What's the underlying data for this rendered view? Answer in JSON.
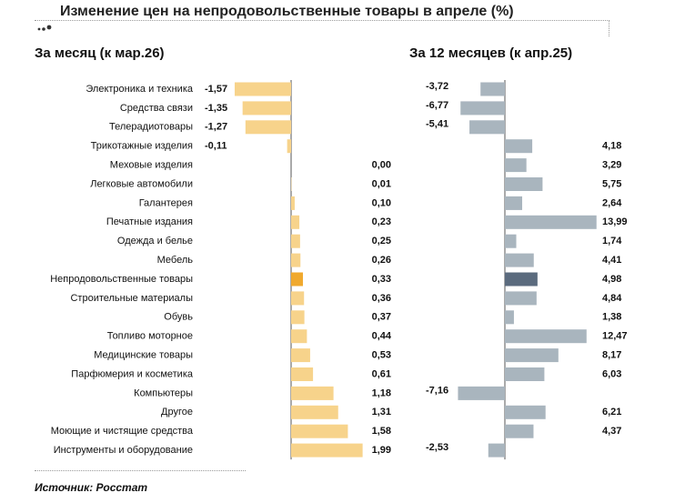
{
  "header": {
    "title": "Изменение цен на непродовольственные товары в апреле (%)",
    "left_subtitle": "За месяц (к мар.26)",
    "right_subtitle": "За 12 месяцев (к апр.25)",
    "source": "Источник: Росстат"
  },
  "colors": {
    "month_bar": "#f7d38b",
    "month_highlight": "#f0a92e",
    "year_bar": "#a9b5be",
    "year_highlight": "#5b6b7e",
    "axis": "#555555"
  },
  "chart_data": [
    {
      "type": "bar",
      "orientation": "horizontal",
      "title": "За месяц (к мар.26)",
      "highlight": "Непродовольственные товары",
      "categories": [
        "Электроника и техника",
        "Средства связи",
        "Телерадиотовары",
        "Трикотажные изделия",
        "Меховые изделия",
        "Легковые автомобили",
        "Галантерея",
        "Печатные издания",
        "Одежда и белье",
        "Мебель",
        "Непродовольственные товары",
        "Строительные материалы",
        "Обувь",
        "Топливо моторное",
        "Медицинские товары",
        "Парфюмерия и косметика",
        "Компьютеры",
        "Другое",
        "Моющие и чистящие средства",
        "Инструменты и оборудование"
      ],
      "values": [
        -1.57,
        -1.35,
        -1.27,
        -0.11,
        0.0,
        0.01,
        0.1,
        0.23,
        0.25,
        0.26,
        0.33,
        0.36,
        0.37,
        0.44,
        0.53,
        0.61,
        1.18,
        1.31,
        1.58,
        1.99
      ],
      "labels": [
        "-1,57",
        "-1,35",
        "-1,27",
        "-0,11",
        "0,00",
        "0,01",
        "0,10",
        "0,23",
        "0,25",
        "0,26",
        "0,33",
        "0,36",
        "0,37",
        "0,44",
        "0,53",
        "0,61",
        "1,18",
        "1,31",
        "1,58",
        "1,99"
      ]
    },
    {
      "type": "bar",
      "orientation": "horizontal",
      "title": "За 12 месяцев (к апр.25)",
      "highlight": "Непродовольственные товары",
      "categories": [
        "Электроника и техника",
        "Средства связи",
        "Телерадиотовары",
        "Трикотажные изделия",
        "Меховые изделия",
        "Легковые автомобили",
        "Галантерея",
        "Печатные издания",
        "Одежда и белье",
        "Мебель",
        "Непродовольственные товары",
        "Строительные материалы",
        "Обувь",
        "Топливо моторное",
        "Медицинские товары",
        "Парфюмерия и косметика",
        "Компьютеры",
        "Другое",
        "Моющие и чистящие средства",
        "Инструменты и оборудование"
      ],
      "values": [
        -3.72,
        -6.77,
        -5.41,
        4.18,
        3.29,
        5.75,
        2.64,
        13.99,
        1.74,
        4.41,
        4.98,
        4.84,
        1.38,
        12.47,
        8.17,
        6.03,
        -7.16,
        6.21,
        4.37,
        -2.53
      ],
      "labels": [
        "-3,72",
        "-6,77",
        "-5,41",
        "4,18",
        "3,29",
        "5,75",
        "2,64",
        "13,99",
        "1,74",
        "4,41",
        "4,98",
        "4,84",
        "1,38",
        "12,47",
        "8,17",
        "6,03",
        "-7,16",
        "6,21",
        "4,37",
        "-2,53"
      ]
    }
  ]
}
